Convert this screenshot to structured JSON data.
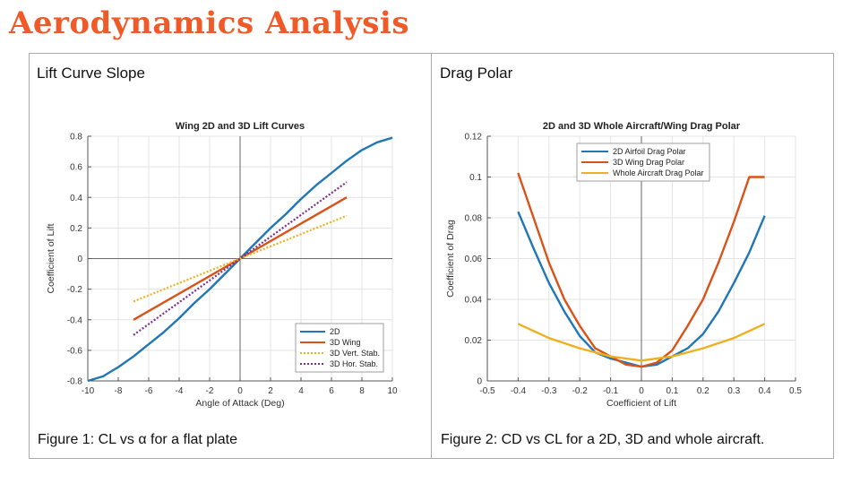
{
  "slide": {
    "title": "Aerodynamics Analysis"
  },
  "left_panel": {
    "heading": "Lift Curve Slope",
    "caption": "Figure 1: CL vs α for a flat plate"
  },
  "right_panel": {
    "heading": "Drag Polar",
    "caption": "Figure 2: CD vs CL for a 2D, 3D and whole aircraft."
  },
  "colors": {
    "title": "#f05a28",
    "blue": "#1f77b4",
    "orange": "#d95319",
    "yellow": "#edb120",
    "purple": "#7e2f8e"
  },
  "chart_data": [
    {
      "type": "line",
      "title": "Wing 2D and 3D Lift Curves",
      "xlabel": "Angle of Attack (Deg)",
      "ylabel": "Coefficient of Lift",
      "xlim": [
        -10,
        10
      ],
      "ylim": [
        -0.8,
        0.8
      ],
      "xticks": [
        -10,
        -8,
        -6,
        -4,
        -2,
        0,
        2,
        4,
        6,
        8,
        10
      ],
      "yticks": [
        -0.8,
        -0.6,
        -0.4,
        -0.2,
        0,
        0.2,
        0.4,
        0.6,
        0.8
      ],
      "grid": true,
      "legend": "bottom-right",
      "series": [
        {
          "name": "2D",
          "color": "#1f77b4",
          "dash": "solid",
          "x": [
            -10,
            -9,
            -8,
            -7,
            -6,
            -5,
            -4,
            -3,
            -2,
            -1,
            0,
            1,
            2,
            3,
            4,
            5,
            6,
            7,
            8,
            9,
            10
          ],
          "y": [
            -0.8,
            -0.77,
            -0.71,
            -0.64,
            -0.56,
            -0.48,
            -0.39,
            -0.29,
            -0.2,
            -0.1,
            0,
            0.1,
            0.2,
            0.29,
            0.39,
            0.48,
            0.56,
            0.64,
            0.71,
            0.76,
            0.79
          ]
        },
        {
          "name": "3D Wing",
          "color": "#d95319",
          "dash": "solid",
          "x": [
            -7,
            0,
            7
          ],
          "y": [
            -0.4,
            0,
            0.4
          ]
        },
        {
          "name": "3D Vert. Stab.",
          "color": "#edb120",
          "dash": "dotted",
          "x": [
            -7,
            0,
            7
          ],
          "y": [
            -0.28,
            0,
            0.28
          ]
        },
        {
          "name": "3D Hor. Stab.",
          "color": "#7e2f8e",
          "dash": "dotted",
          "x": [
            -7,
            0,
            7
          ],
          "y": [
            -0.5,
            0,
            0.5
          ]
        }
      ]
    },
    {
      "type": "line",
      "title": "2D and 3D Whole Aircraft/Wing Drag Polar",
      "xlabel": "Coefficient of Lift",
      "ylabel": "Coefficient of Drag",
      "xlim": [
        -0.5,
        0.5
      ],
      "ylim": [
        0,
        0.12
      ],
      "xticks": [
        -0.5,
        -0.4,
        -0.3,
        -0.2,
        -0.1,
        0,
        0.1,
        0.2,
        0.3,
        0.4,
        0.5
      ],
      "yticks": [
        0,
        0.02,
        0.04,
        0.06,
        0.08,
        0.1,
        0.12
      ],
      "grid": true,
      "legend": "top-center",
      "series": [
        {
          "name": "2D Airfoil Drag Polar",
          "color": "#1f77b4",
          "dash": "solid",
          "x": [
            -0.4,
            -0.35,
            -0.3,
            -0.25,
            -0.2,
            -0.15,
            -0.1,
            -0.05,
            0,
            0.05,
            0.1,
            0.15,
            0.2,
            0.25,
            0.3,
            0.35,
            0.4
          ],
          "y": [
            0.083,
            0.065,
            0.048,
            0.034,
            0.022,
            0.014,
            0.011,
            0.009,
            0.007,
            0.008,
            0.012,
            0.016,
            0.023,
            0.034,
            0.048,
            0.063,
            0.081
          ]
        },
        {
          "name": "3D Wing Drag Polar",
          "color": "#d95319",
          "dash": "solid",
          "x": [
            -0.4,
            -0.35,
            -0.3,
            -0.25,
            -0.2,
            -0.15,
            -0.1,
            -0.05,
            0,
            0.05,
            0.1,
            0.15,
            0.2,
            0.25,
            0.3,
            0.35,
            0.4
          ],
          "y": [
            0.102,
            0.08,
            0.058,
            0.04,
            0.027,
            0.016,
            0.012,
            0.008,
            0.007,
            0.009,
            0.015,
            0.027,
            0.04,
            0.058,
            0.078,
            0.1,
            0.1
          ]
        },
        {
          "name": "Whole Aircraft Drag Polar",
          "color": "#edb120",
          "dash": "solid",
          "x": [
            -0.4,
            -0.3,
            -0.2,
            -0.1,
            0,
            0.1,
            0.2,
            0.3,
            0.4
          ],
          "y": [
            0.028,
            0.021,
            0.016,
            0.012,
            0.01,
            0.012,
            0.016,
            0.021,
            0.028
          ]
        }
      ]
    }
  ]
}
